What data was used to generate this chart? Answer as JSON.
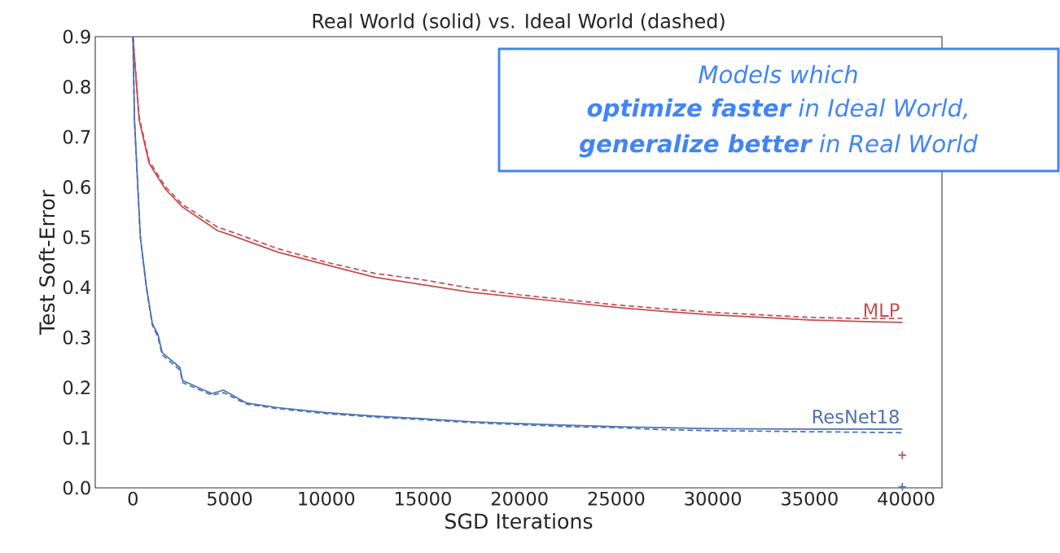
{
  "chart_data": {
    "type": "line",
    "title": "Real World (solid) vs. Ideal World (dashed)",
    "xlabel": "SGD Iterations",
    "ylabel": "Test Soft-Error",
    "xlim": [
      -1950,
      41850
    ],
    "ylim": [
      0,
      0.9
    ],
    "xticks": [
      0,
      5000,
      10000,
      15000,
      20000,
      25000,
      30000,
      35000,
      40000
    ],
    "yticks": [
      {
        "value": 0,
        "label": "0.0"
      },
      {
        "value": 0.1,
        "label": "0.1"
      },
      {
        "value": 0.2,
        "label": "0.2"
      },
      {
        "value": 0.3,
        "label": "0.3"
      },
      {
        "value": 0.4,
        "label": "0.4"
      },
      {
        "value": 0.5,
        "label": "0.5"
      },
      {
        "value": 0.6,
        "label": "0.6"
      },
      {
        "value": 0.7,
        "label": "0.7"
      },
      {
        "value": 0.8,
        "label": "0.8"
      },
      {
        "value": 0.9,
        "label": "0.9"
      }
    ],
    "annotations": [
      "Models which",
      "**optimize faster** in Ideal World,",
      "**generalize better** in Real World"
    ],
    "series": [
      {
        "name": "MLP",
        "type": "line",
        "line_style": "solid",
        "marker": "none",
        "color": "#c44e52",
        "x": [
          0,
          320,
          840,
          1690,
          2570,
          4380,
          5000,
          7500,
          10000,
          12500,
          15000,
          17500,
          20000,
          22500,
          25000,
          27500,
          30000,
          32500,
          35000,
          37500,
          39800
        ],
        "values": [
          0.9,
          0.734,
          0.647,
          0.595,
          0.56,
          0.513,
          0.505,
          0.47,
          0.445,
          0.42,
          0.405,
          0.39,
          0.38,
          0.37,
          0.36,
          0.352,
          0.345,
          0.34,
          0.335,
          0.332,
          0.33
        ]
      },
      {
        "type": "line",
        "line_style": "dashed",
        "marker": "none",
        "color": "#c44e52",
        "x": [
          0,
          320,
          840,
          1690,
          2570,
          4380,
          5000,
          7500,
          10000,
          12500,
          15000,
          17500,
          20000,
          22500,
          25000,
          27500,
          30000,
          32500,
          35000,
          37500,
          39800
        ],
        "values": [
          0.9,
          0.74,
          0.652,
          0.6,
          0.565,
          0.52,
          0.512,
          0.477,
          0.45,
          0.428,
          0.415,
          0.398,
          0.385,
          0.375,
          0.365,
          0.357,
          0.35,
          0.345,
          0.34,
          0.338,
          0.338
        ]
      },
      {
        "name": "ResNet18",
        "type": "line",
        "line_style": "solid",
        "marker": "none",
        "color": "#4c72b0",
        "x": [
          0,
          80,
          380,
          690,
          1000,
          1300,
          1510,
          2430,
          2570,
          4080,
          4680,
          5880,
          7500,
          10000,
          12500,
          15000,
          17500,
          20000,
          22500,
          25000,
          27500,
          30000,
          35000,
          39800
        ],
        "values": [
          0.9,
          0.734,
          0.502,
          0.403,
          0.328,
          0.305,
          0.27,
          0.24,
          0.214,
          0.188,
          0.195,
          0.169,
          0.16,
          0.15,
          0.143,
          0.138,
          0.132,
          0.128,
          0.125,
          0.122,
          0.12,
          0.118,
          0.117,
          0.117
        ]
      },
      {
        "type": "line",
        "line_style": "dashed",
        "marker": "none",
        "color": "#4c72b0",
        "x": [
          0,
          80,
          380,
          690,
          1000,
          1300,
          1510,
          2430,
          2570,
          4080,
          4680,
          5880,
          7500,
          10000,
          12500,
          15000,
          17500,
          20000,
          22500,
          25000,
          27500,
          30000,
          35000,
          39800
        ],
        "values": [
          0.9,
          0.73,
          0.5,
          0.4,
          0.325,
          0.3,
          0.265,
          0.235,
          0.21,
          0.185,
          0.19,
          0.167,
          0.158,
          0.148,
          0.141,
          0.136,
          0.13,
          0.126,
          0.122,
          0.12,
          0.116,
          0.114,
          0.112,
          0.11
        ]
      },
      {
        "type": "scatter",
        "marker": "cross",
        "color": "#c44e52",
        "x": [
          39800
        ],
        "values": [
          0.065
        ]
      },
      {
        "type": "scatter",
        "marker": "cross",
        "color": "#4c72b0",
        "x": [
          39800
        ],
        "values": [
          0.002
        ]
      }
    ]
  }
}
